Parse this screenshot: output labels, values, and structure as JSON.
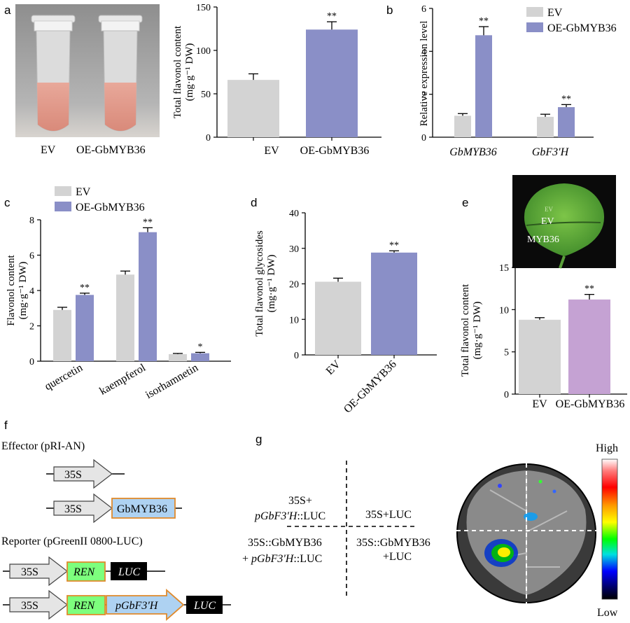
{
  "panels": {
    "a": "a",
    "b": "b",
    "c": "c",
    "d": "d",
    "e": "e",
    "f": "f",
    "g": "g"
  },
  "colors": {
    "ev": "#d3d3d3",
    "oe": "#8a8fc7",
    "oe_e": "#c5a2d3",
    "ren": "#7dff7d",
    "luc": "#000000",
    "gbmyb": "#aed2f2",
    "box_border": "#e08a2c",
    "arrow_fill": "#e5e5e5"
  },
  "panel_a": {
    "photo_labels": [
      "EV",
      "OE-GbMYB36"
    ]
  },
  "chart_data": [
    {
      "panel": "a",
      "type": "bar",
      "categories": [
        "EV",
        "OE-GbMYB36"
      ],
      "values": [
        66,
        124
      ],
      "errors": [
        7,
        9
      ],
      "significance": [
        "",
        "**"
      ],
      "ylabel_main": "Total flavonol content",
      "ylabel_unit": "(mg·g⁻¹ DW)",
      "ylim": [
        0,
        150
      ],
      "ticks": [
        "0",
        "50",
        "100",
        "150"
      ]
    },
    {
      "panel": "b",
      "type": "bar",
      "categories": [
        "GbMYB36",
        "GbF3'H"
      ],
      "series": [
        {
          "name": "EV",
          "values": [
            1.0,
            0.95
          ],
          "errors": [
            0.1,
            0.12
          ]
        },
        {
          "name": "OE-GbMYB36",
          "values": [
            4.75,
            1.4
          ],
          "errors": [
            0.4,
            0.12
          ]
        }
      ],
      "significance": [
        "**",
        "**"
      ],
      "ylabel": "Relative expression level",
      "ylim": [
        0,
        6
      ],
      "ticks": [
        "0",
        "2",
        "4",
        "6"
      ],
      "legend": "top-right"
    },
    {
      "panel": "c",
      "type": "bar",
      "categories": [
        "quercetin",
        "kaempferol",
        "isorhamnetin"
      ],
      "series": [
        {
          "name": "EV",
          "values": [
            2.9,
            4.9,
            0.4
          ],
          "errors": [
            0.15,
            0.2,
            0.04
          ]
        },
        {
          "name": "OE-GbMYB36",
          "values": [
            3.75,
            7.3,
            0.45
          ],
          "errors": [
            0.1,
            0.25,
            0.05
          ]
        }
      ],
      "significance": [
        "**",
        "**",
        "*"
      ],
      "ylabel_main": "Flavonol content",
      "ylabel_unit": "(mg·g⁻¹ DW)",
      "ylim": [
        0,
        8
      ],
      "ticks": [
        "0",
        "2",
        "4",
        "6",
        "8"
      ],
      "legend": "top-left"
    },
    {
      "panel": "d",
      "type": "bar",
      "categories": [
        "EV",
        "OE-GbMYB36"
      ],
      "values": [
        20.6,
        28.8
      ],
      "errors": [
        1.0,
        0.5
      ],
      "significance": [
        "",
        "**"
      ],
      "ylabel_main": "Total flavonol glycosides",
      "ylabel_unit": "(mg·g⁻¹ DW)",
      "ylim": [
        0,
        40
      ],
      "ticks": [
        "0",
        "10",
        "20",
        "30",
        "40"
      ]
    },
    {
      "panel": "e",
      "type": "bar",
      "categories": [
        "EV",
        "OE-GbMYB36"
      ],
      "values": [
        8.8,
        11.2
      ],
      "errors": [
        0.25,
        0.6
      ],
      "significance": [
        "",
        "**"
      ],
      "ylabel_main": "Total flavonol content",
      "ylabel_unit": "(mg·g⁻¹ DW)",
      "ylim": [
        0,
        15
      ],
      "ticks": [
        "0",
        "5",
        "10",
        "15"
      ]
    }
  ],
  "panel_e_leaf": {
    "ev": "EV",
    "myb": "MYB36"
  },
  "panel_f": {
    "effector_title": "Effector (pRI-AN)",
    "reporter_title": "Reporter (pGreenII 0800-LUC)",
    "promoter": "35S",
    "gene": "GbMYB36",
    "ren": "REN",
    "luc": "LUC",
    "target_promoter": "pGbF3'H"
  },
  "panel_g": {
    "q_tl_line1": "35S+",
    "q_tl_line2_it": "pGbF3'H",
    "q_tl_line2_rest": "::LUC",
    "q_tr": "35S+LUC",
    "q_bl_line1": "35S::GbMYB36",
    "q_bl_line2_pre": "+ ",
    "q_bl_line2_it": "pGbF3'H",
    "q_bl_line2_rest": "::LUC",
    "q_br_line1": "35S::GbMYB36",
    "q_br_line2": "+LUC",
    "scale_high": "High",
    "scale_low": "Low"
  }
}
